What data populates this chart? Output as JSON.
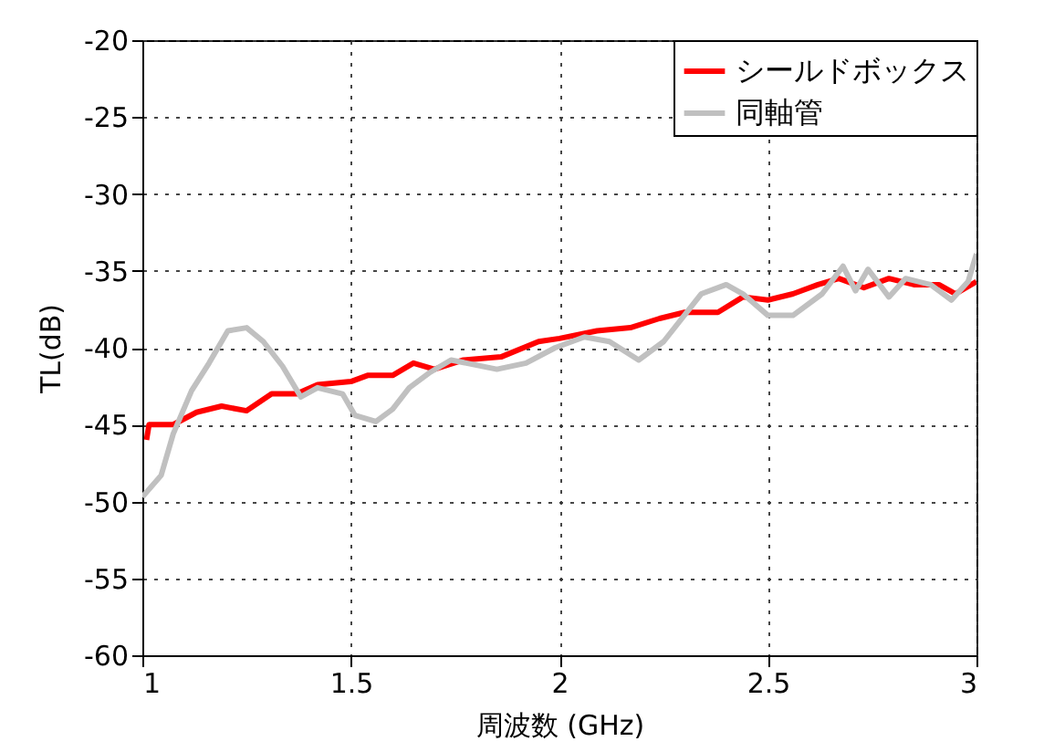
{
  "chart_data": {
    "type": "line",
    "xlabel": "周波数 (GHz)",
    "ylabel": "TL(dB)",
    "xlim": [
      1,
      3
    ],
    "xticks": [
      {
        "value": 1,
        "label": "1"
      },
      1.5,
      {
        "value": 2,
        "label": "2"
      },
      2.5,
      {
        "value": 3,
        "label": "3"
      }
    ],
    "ylim": [
      -60,
      -20
    ],
    "yticks": [
      -60,
      -55,
      -50,
      -45,
      -40,
      -35,
      -30,
      -25,
      -20
    ],
    "grid": true,
    "legend": "top right",
    "line_style": "solid",
    "marker": "none",
    "series": [
      {
        "name": "シールドボックス",
        "color": "#ff0000",
        "x": [
          1.01,
          1.016,
          1.074,
          1.13,
          1.19,
          1.25,
          1.31,
          1.37,
          1.42,
          1.5,
          1.54,
          1.6,
          1.65,
          1.7,
          1.77,
          1.86,
          1.95,
          2.0,
          2.09,
          2.17,
          2.24,
          2.3,
          2.38,
          2.44,
          2.5,
          2.56,
          2.62,
          2.67,
          2.73,
          2.79,
          2.85,
          2.91,
          2.95,
          3.0
        ],
        "values": [
          -46.0,
          -45.0,
          -45.0,
          -44.2,
          -43.8,
          -44.1,
          -43.0,
          -43.0,
          -42.4,
          -42.2,
          -41.8,
          -41.8,
          -41.0,
          -41.4,
          -40.8,
          -40.6,
          -39.6,
          -39.4,
          -38.9,
          -38.7,
          -38.1,
          -37.7,
          -37.7,
          -36.7,
          -36.9,
          -36.5,
          -35.9,
          -35.5,
          -36.1,
          -35.5,
          -35.9,
          -35.9,
          -36.5,
          -35.7
        ]
      },
      {
        "name": "同軸管",
        "color": "#c0c0c0",
        "x": [
          1.0,
          1.045,
          1.074,
          1.118,
          1.16,
          1.205,
          1.25,
          1.29,
          1.336,
          1.38,
          1.42,
          1.48,
          1.51,
          1.56,
          1.6,
          1.64,
          1.69,
          1.74,
          1.85,
          1.92,
          1.99,
          2.06,
          2.12,
          2.19,
          2.25,
          2.34,
          2.4,
          2.44,
          2.5,
          2.56,
          2.63,
          2.68,
          2.71,
          2.74,
          2.79,
          2.83,
          2.89,
          2.94,
          2.98,
          3.0
        ],
        "values": [
          -49.7,
          -48.3,
          -45.6,
          -42.8,
          -41.0,
          -38.9,
          -38.7,
          -39.6,
          -41.2,
          -43.2,
          -42.6,
          -43.0,
          -44.4,
          -44.8,
          -44.0,
          -42.6,
          -41.6,
          -40.8,
          -41.4,
          -41.0,
          -40.0,
          -39.3,
          -39.6,
          -40.8,
          -39.6,
          -36.5,
          -35.9,
          -36.5,
          -37.9,
          -37.9,
          -36.5,
          -34.7,
          -36.3,
          -34.9,
          -36.7,
          -35.5,
          -35.9,
          -36.9,
          -35.7,
          -33.9
        ]
      }
    ]
  }
}
